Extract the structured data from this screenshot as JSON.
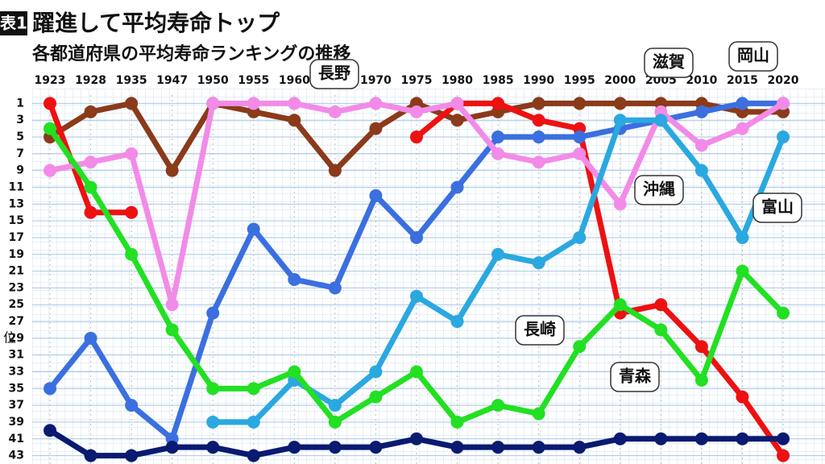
{
  "chart_data": {
    "type": "line",
    "figure_label": "表1",
    "title": "躍進して平均寿命トップ",
    "subtitle": "各都道府県の平均寿命ランキングの推移",
    "y_label": "位",
    "categories": [
      "1923",
      "1928",
      "1935",
      "1947",
      "1950",
      "1955",
      "1960",
      "1965",
      "1970",
      "1975",
      "1980",
      "1985",
      "1990",
      "1995",
      "2000",
      "2005",
      "2010",
      "2015",
      "2020"
    ],
    "ylim": [
      0,
      44
    ],
    "y_inverted": true,
    "yticks": [
      1,
      3,
      5,
      7,
      9,
      11,
      13,
      15,
      17,
      19,
      21,
      23,
      25,
      27,
      29,
      31,
      33,
      35,
      37,
      39,
      41,
      43
    ],
    "grid": true,
    "series": [
      {
        "name": "長野",
        "color": "#8b3a1a",
        "values": [
          5,
          2,
          1,
          9,
          1,
          2,
          3,
          9,
          4,
          1,
          3,
          2,
          1,
          1,
          1,
          1,
          1,
          2,
          2
        ]
      },
      {
        "name": "沖縄",
        "color": "#ee1111",
        "values": [
          1,
          14,
          14,
          null,
          null,
          null,
          null,
          null,
          null,
          5,
          1,
          1,
          3,
          4,
          26,
          25,
          30,
          36,
          43
        ]
      },
      {
        "name": "滋賀",
        "color": "#3b6fe0",
        "values": [
          35,
          29,
          37,
          41,
          26,
          16,
          22,
          23,
          12,
          17,
          11,
          5,
          5,
          5,
          4,
          3,
          2,
          1,
          1
        ]
      },
      {
        "name": "岡山",
        "color": "#f28be8",
        "values": [
          9,
          8,
          7,
          25,
          1,
          1,
          1,
          2,
          1,
          2,
          1,
          7,
          8,
          7,
          13,
          2,
          6,
          4,
          1
        ]
      },
      {
        "name": "富山",
        "color": "#2aa8e0",
        "values": [
          null,
          null,
          null,
          null,
          39,
          39,
          34,
          37,
          33,
          24,
          27,
          19,
          20,
          17,
          3,
          3,
          9,
          17,
          5
        ]
      },
      {
        "name": "長崎",
        "color": "#22e022",
        "values": [
          4,
          11,
          19,
          28,
          35,
          35,
          33,
          39,
          36,
          33,
          39,
          37,
          38,
          30,
          25,
          28,
          34,
          21,
          26
        ]
      },
      {
        "name": "青森",
        "color": "#0a1a70",
        "values": [
          40,
          43,
          43,
          42,
          42,
          43,
          42,
          42,
          42,
          41,
          42,
          42,
          42,
          42,
          41,
          41,
          41,
          41,
          41
        ]
      }
    ]
  }
}
